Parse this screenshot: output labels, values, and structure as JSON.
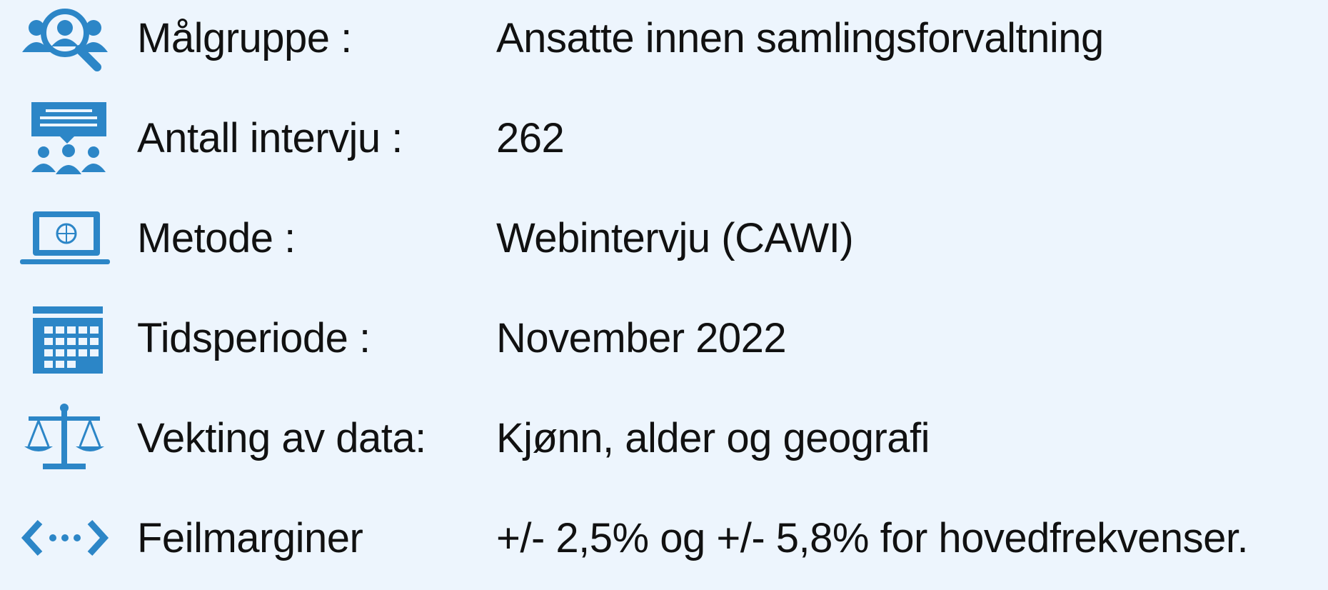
{
  "rows": [
    {
      "label": "Målgruppe :",
      "value": "Ansatte innen samlingsforvaltning"
    },
    {
      "label": "Antall intervju :",
      "value": 262
    },
    {
      "label": "Metode :",
      "value": "Webintervju (CAWI)"
    },
    {
      "label": "Tidsperiode :",
      "value": "November 2022"
    },
    {
      "label": "Vekting av data:",
      "value": "Kjønn, alder og geografi"
    },
    {
      "label": "Feilmarginer",
      "value": "+/- 2,5% og +/- 5,8% for hovedfrekvenser."
    }
  ]
}
